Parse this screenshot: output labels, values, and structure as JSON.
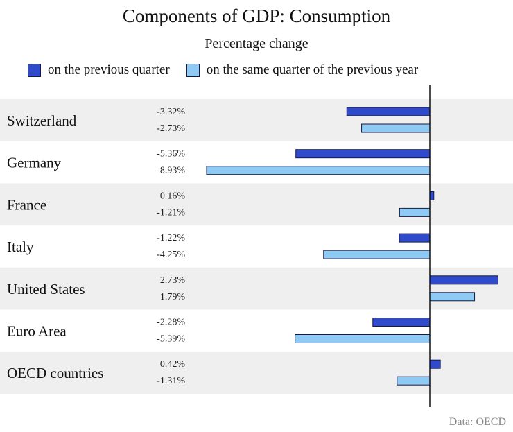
{
  "chart_data": {
    "type": "bar",
    "orientation": "horizontal",
    "title": "Components of GDP: Consumption",
    "subtitle": "Percentage change",
    "categories": [
      "Switzerland",
      "Germany",
      "France",
      "Italy",
      "United States",
      "Euro Area",
      "OECD countries"
    ],
    "series": [
      {
        "name": "on the previous quarter",
        "color": "#2f4bcc",
        "values": [
          -3.32,
          -5.36,
          0.16,
          -1.22,
          2.73,
          -2.28,
          0.42
        ]
      },
      {
        "name": "on the same quarter of the previous year",
        "color": "#8fcaf5",
        "values": [
          -2.73,
          -8.93,
          -1.21,
          -4.25,
          1.79,
          -5.39,
          -1.31
        ]
      }
    ],
    "value_labels_unit": "%",
    "legend": "top",
    "grid": false,
    "source": "Data: OECD",
    "band_color": "#efefef"
  }
}
